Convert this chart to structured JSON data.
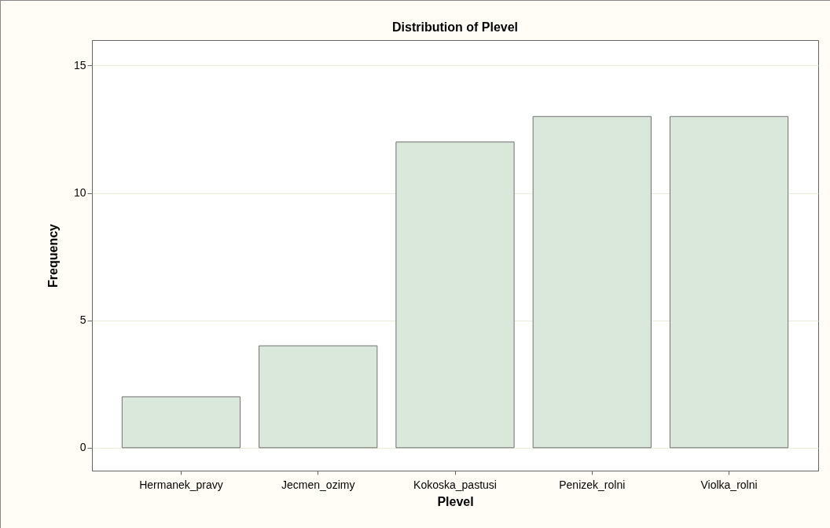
{
  "chart_data": {
    "type": "bar",
    "title": "Distribution of Plevel",
    "xlabel": "Plevel",
    "ylabel": "Frequency",
    "categories": [
      "Hermanek_pravy",
      "Jecmen_ozimy",
      "Kokoska_pastusi",
      "Penizek_rolni",
      "Violka_rolni"
    ],
    "values": [
      2,
      4,
      12,
      13,
      13
    ],
    "color": "#d9e8da",
    "ylim": [
      -0.9,
      16
    ],
    "yticks": [
      0,
      5,
      10,
      15
    ],
    "grid": "y"
  }
}
